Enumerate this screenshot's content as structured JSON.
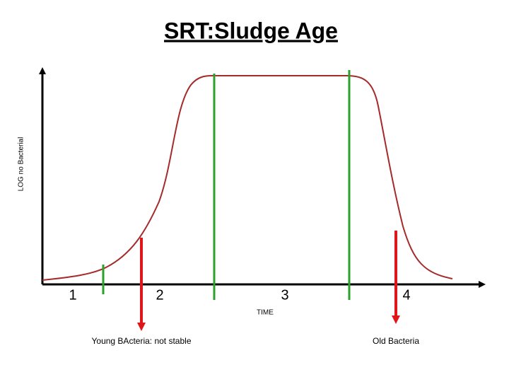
{
  "title": "SRT:Sludge Age",
  "axes": {
    "y_label": "LOG no Bacterial",
    "x_label": "TIME"
  },
  "phases": [
    "1",
    "2",
    "3",
    "4"
  ],
  "annotations": [
    "Young BActeria: not stable",
    "Old Bacteria"
  ]
}
